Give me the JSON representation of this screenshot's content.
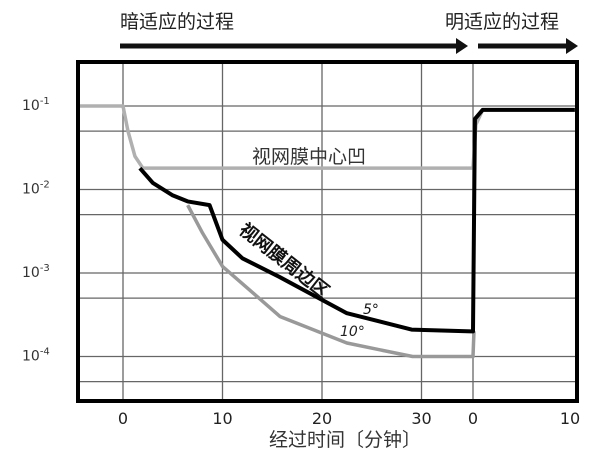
{
  "chart_data": {
    "type": "line",
    "title": "",
    "phase_labels": {
      "dark": "暗适应的过程",
      "light": "明适应的过程"
    },
    "xlabel": "经过时间〔分钟〕",
    "ylabel": "",
    "y_scale": "log",
    "ylim": [
      4.5e-05,
      0.34
    ],
    "x_ticks_dark": [
      "0",
      "10",
      "20",
      "30"
    ],
    "x_ticks_light": [
      "0",
      "10"
    ],
    "x_tick_values_dark": [
      0,
      10,
      20,
      30
    ],
    "x_tick_values_light": [
      0,
      10
    ],
    "dark_xlim": [
      -4.5,
      35
    ],
    "light_xlim": [
      0,
      10.5
    ],
    "y_ticks": [
      {
        "value": 0.1,
        "base": "10",
        "exp": "-1"
      },
      {
        "value": 0.01,
        "base": "10",
        "exp": "-2"
      },
      {
        "value": 0.001,
        "base": "10",
        "exp": "-3"
      },
      {
        "value": 0.0001,
        "base": "10",
        "exp": "-4"
      }
    ],
    "minor_gridlines": [
      0.05,
      0.005,
      0.0005,
      5e-05
    ],
    "grid": true,
    "series": [
      {
        "name": "视网膜中心凹",
        "color": "#b0b0b0",
        "dark": [
          [
            -4.5,
            0.1
          ],
          [
            0,
            0.1
          ],
          [
            0.5,
            0.05
          ],
          [
            1.2,
            0.025
          ],
          [
            2,
            0.018
          ],
          [
            35,
            0.018
          ]
        ],
        "light": [
          [
            0,
            0.018
          ],
          [
            0.3,
            0.06
          ],
          [
            1,
            0.09
          ],
          [
            10.5,
            0.09
          ]
        ]
      },
      {
        "name": "视网膜周边区 5°",
        "color": "#000000",
        "dark": [
          [
            1.7,
            0.018
          ],
          [
            3,
            0.012
          ],
          [
            5,
            0.0085
          ],
          [
            6.5,
            0.0072
          ],
          [
            8.7,
            0.0065
          ],
          [
            10,
            0.0025
          ],
          [
            12,
            0.0015
          ],
          [
            15.7,
            0.0009
          ],
          [
            22.5,
            0.00033
          ],
          [
            29,
            0.00021
          ],
          [
            35,
            0.0002
          ]
        ],
        "light": [
          [
            0,
            0.0002
          ],
          [
            0.2,
            0.07
          ],
          [
            1,
            0.09
          ],
          [
            10.5,
            0.09
          ]
        ]
      },
      {
        "name": "10°",
        "color": "#999999",
        "dark": [
          [
            6.5,
            0.0065
          ],
          [
            8,
            0.003
          ],
          [
            10,
            0.0012
          ],
          [
            15.8,
            0.0003
          ],
          [
            22.5,
            0.000145
          ],
          [
            29.1,
            0.0001
          ],
          [
            35,
            0.0001
          ]
        ],
        "light": [
          [
            0,
            0.0001
          ],
          [
            0.1,
            0.0002
          ]
        ]
      }
    ],
    "annotations": {
      "fovea": "视网膜中心凹",
      "periphery": "视网膜周边区",
      "deg5": "5°",
      "deg10": "10°"
    }
  }
}
